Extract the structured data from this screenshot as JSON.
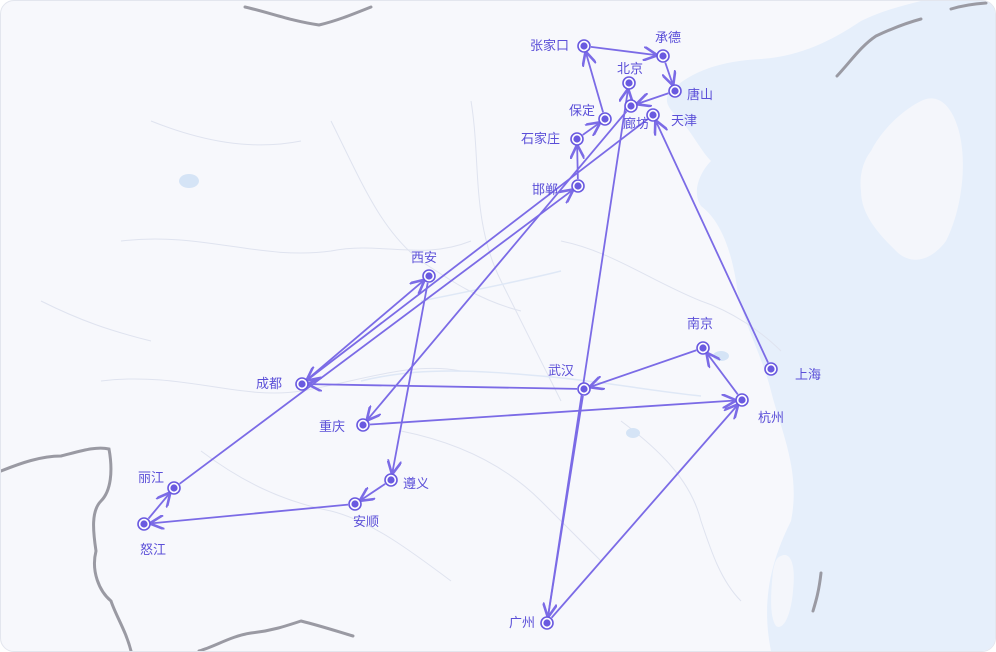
{
  "map": {
    "colors": {
      "land": "#f7f8fc",
      "sea": "#e6effb",
      "route": "#7b6be6",
      "label": "#5b4fd8",
      "marker_fill": "#6a5ae0",
      "border": "#9a9aa3",
      "lake": "#d5e4f6"
    },
    "cities": [
      {
        "id": "zhangjiakou",
        "name": "张家口"
      },
      {
        "id": "chengde",
        "name": "承德"
      },
      {
        "id": "beijing",
        "name": "北京"
      },
      {
        "id": "tangshan",
        "name": "唐山"
      },
      {
        "id": "baoding",
        "name": "保定"
      },
      {
        "id": "tianjin",
        "name": "天津"
      },
      {
        "id": "langfang",
        "name": "廊坊"
      },
      {
        "id": "shijiazhuang",
        "name": "石家庄"
      },
      {
        "id": "handan",
        "name": "邯郸"
      },
      {
        "id": "xian",
        "name": "西安"
      },
      {
        "id": "nanjing",
        "name": "南京"
      },
      {
        "id": "chengdu",
        "name": "成都"
      },
      {
        "id": "wuhan",
        "name": "武汉"
      },
      {
        "id": "shanghai",
        "name": "上海"
      },
      {
        "id": "hangzhou",
        "name": "杭州"
      },
      {
        "id": "chongqing",
        "name": "重庆"
      },
      {
        "id": "lijiang",
        "name": "丽江"
      },
      {
        "id": "zunyi",
        "name": "遵义"
      },
      {
        "id": "nujiang",
        "name": "怒江"
      },
      {
        "id": "anshun",
        "name": "安顺"
      },
      {
        "id": "guangzhou",
        "name": "广州"
      }
    ],
    "route": [
      "handan",
      "shijiazhuang",
      "baoding",
      "zhangjiakou",
      "chengde",
      "tangshan",
      "langfang",
      "chongqing",
      "hangzhou",
      "nanjing",
      "wuhan",
      "chengdu",
      "xian",
      "zunyi",
      "anshun",
      "nujiang",
      "lijiang",
      "handan"
    ],
    "route2": [
      "tianjin",
      "chengdu"
    ],
    "route3": [
      "shanghai",
      "tianjin"
    ],
    "route4": [
      "wuhan",
      "guangzhou",
      "hangzhou"
    ],
    "route5": [
      "beijing",
      "beijing"
    ]
  }
}
